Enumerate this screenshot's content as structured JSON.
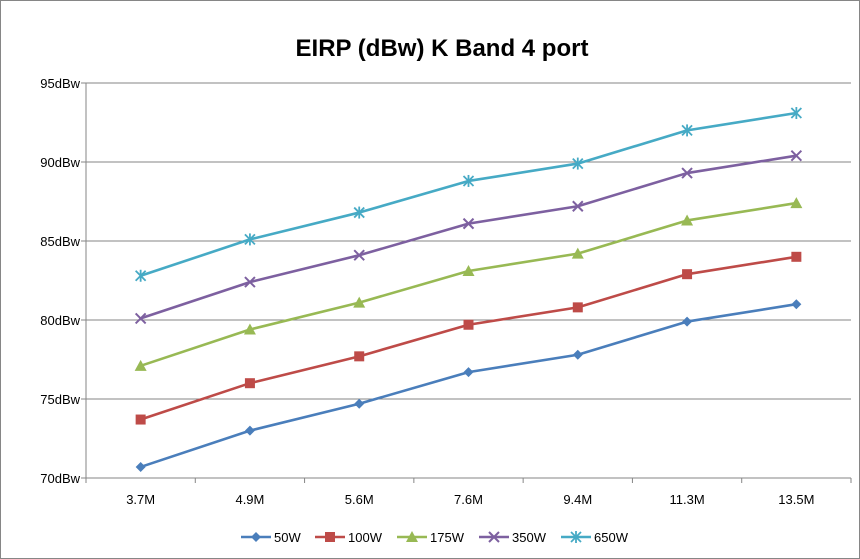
{
  "chart_data": {
    "type": "line",
    "title": "EIRP (dBw) K Band 4 port",
    "categories": [
      "3.7M",
      "4.9M",
      "5.6M",
      "7.6M",
      "9.4M",
      "11.3M",
      "13.5M"
    ],
    "ylim": [
      70,
      95
    ],
    "yticks": [
      70,
      75,
      80,
      85,
      90,
      95
    ],
    "ytick_labels": [
      "70dBw",
      "75dBw",
      "80dBw",
      "85dBw",
      "90dBw",
      "95dBw"
    ],
    "grid": true,
    "legend_position": "bottom",
    "series": [
      {
        "name": "50W",
        "color": "#4a7ebb",
        "marker": "diamond",
        "values": [
          70.7,
          73.0,
          74.7,
          76.7,
          77.8,
          79.9,
          81.0
        ]
      },
      {
        "name": "100W",
        "color": "#be4b48",
        "marker": "square",
        "values": [
          73.7,
          76.0,
          77.7,
          79.7,
          80.8,
          82.9,
          84.0
        ]
      },
      {
        "name": "175W",
        "color": "#98b954",
        "marker": "triangle",
        "values": [
          77.1,
          79.4,
          81.1,
          83.1,
          84.2,
          86.3,
          87.4
        ]
      },
      {
        "name": "350W",
        "color": "#7d60a0",
        "marker": "x",
        "values": [
          80.1,
          82.4,
          84.1,
          86.1,
          87.2,
          89.3,
          90.4
        ]
      },
      {
        "name": "650W",
        "color": "#46aac5",
        "marker": "star",
        "values": [
          82.8,
          85.1,
          86.8,
          88.8,
          89.9,
          92.0,
          93.1
        ]
      }
    ]
  }
}
